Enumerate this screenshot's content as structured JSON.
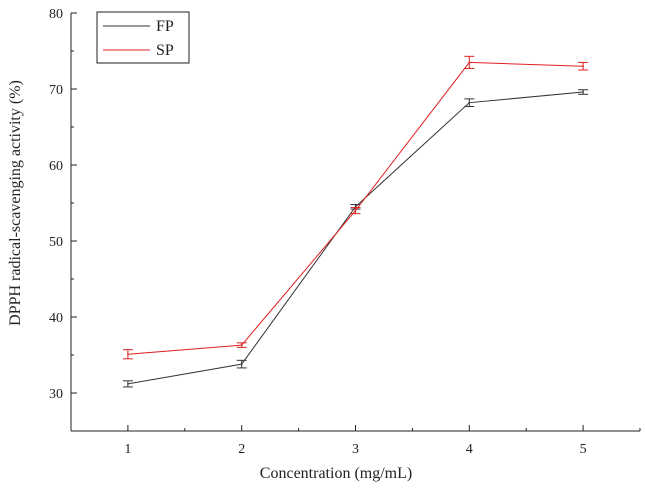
{
  "chart_data": {
    "type": "line",
    "xlabel": "Concentration (mg/mL)",
    "ylabel": "DPPH radical-scavenging activity (%)",
    "x": [
      1,
      2,
      3,
      4,
      5
    ],
    "xlim": [
      0.5,
      5.5
    ],
    "ylim": [
      25,
      80
    ],
    "xticks": [
      1,
      2,
      3,
      4,
      5
    ],
    "yticks": [
      30,
      40,
      50,
      60,
      70,
      80
    ],
    "legend_position": "top-left",
    "grid": false,
    "series": [
      {
        "name": "FP",
        "color": "#333333",
        "values": [
          31.2,
          33.8,
          54.5,
          68.2,
          69.6
        ],
        "errors": [
          0.4,
          0.5,
          0.3,
          0.5,
          0.3
        ]
      },
      {
        "name": "SP",
        "color": "#e02020",
        "values": [
          35.1,
          36.3,
          54.0,
          73.5,
          73.0
        ],
        "errors": [
          0.6,
          0.3,
          0.4,
          0.8,
          0.5
        ]
      }
    ]
  }
}
